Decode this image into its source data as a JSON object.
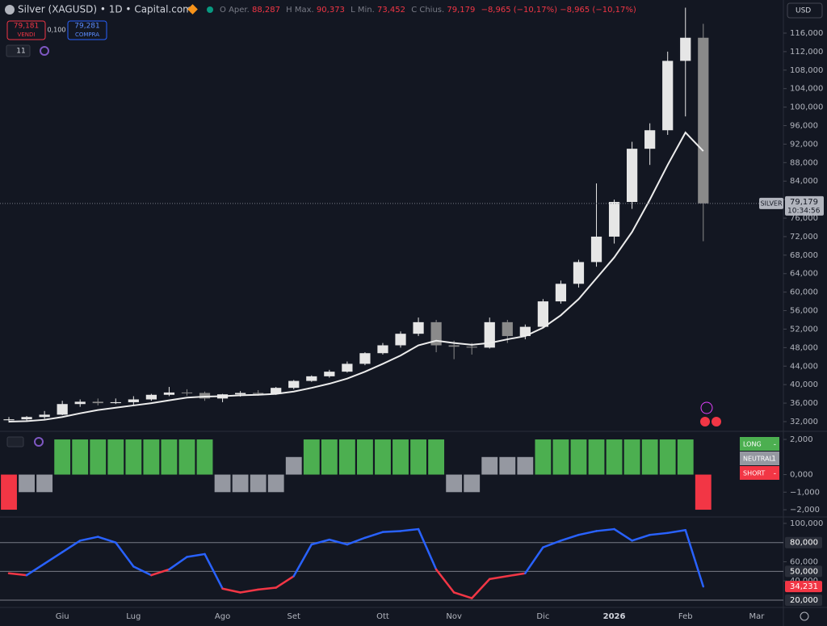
{
  "header": {
    "title": "Silver (XAGUSD) • 1D • Capital.com",
    "ohlc": [
      {
        "key": "O",
        "name": "Aper.",
        "value": "88,287"
      },
      {
        "key": "H",
        "name": "Max.",
        "value": "90,373"
      },
      {
        "key": "L",
        "name": "Min.",
        "value": "73,452"
      },
      {
        "key": "C",
        "name": "Chius.",
        "value": "79,179"
      }
    ],
    "change": "−8,965 (−10,17%)",
    "sell": {
      "price": "79,181",
      "label": "VENDI"
    },
    "spread": "0,100",
    "buy": {
      "price": "79,281",
      "label": "COMPRA"
    },
    "indicators": "11",
    "currency": "USD"
  },
  "chart_data": [
    {
      "type": "candlestick",
      "symbol_tag": "SILVER",
      "last_price_label": "79,179",
      "countdown": "10:34:56",
      "categories": [
        null,
        null,
        null,
        "Giu",
        null,
        null,
        null,
        "Lug",
        null,
        null,
        null,
        null,
        "Ago",
        null,
        null,
        null,
        "Set",
        null,
        null,
        null,
        null,
        "Ott",
        null,
        null,
        null,
        "Nov",
        null,
        null,
        null,
        null,
        "Dic",
        null,
        null,
        null,
        "2026",
        null,
        null,
        null,
        "Feb",
        null,
        null,
        null,
        "Mar",
        null
      ],
      "open": [
        32.3,
        32.5,
        33.0,
        33.5,
        35.8,
        36.3,
        36.0,
        36.2,
        36.8,
        37.8,
        38.3,
        38.2,
        37.0,
        37.9,
        38.2,
        38.0,
        39.3,
        40.8,
        41.8,
        42.8,
        44.5,
        46.8,
        48.5,
        51.0,
        53.5,
        48.5,
        48.2,
        48.0,
        53.5,
        50.5,
        52.5,
        58.0,
        61.8,
        66.5,
        72.0,
        79.5,
        91.0,
        95.0,
        110.0,
        115.0,
        null,
        null,
        null,
        null
      ],
      "high": [
        33.0,
        33.2,
        34.3,
        36.5,
        36.8,
        37.0,
        37.0,
        37.5,
        38.0,
        39.5,
        39.0,
        38.5,
        38.0,
        38.6,
        38.8,
        39.5,
        41.0,
        42.0,
        43.2,
        45.0,
        47.0,
        49.0,
        51.5,
        54.5,
        54.0,
        49.5,
        49.0,
        54.5,
        54.0,
        53.0,
        58.5,
        62.5,
        67.0,
        83.5,
        80.0,
        92.5,
        96.5,
        112.0,
        121.5,
        118.0,
        null,
        null,
        null,
        null
      ],
      "low": [
        31.8,
        32.0,
        32.6,
        33.4,
        35.2,
        35.5,
        35.8,
        35.5,
        36.5,
        37.5,
        37.6,
        36.5,
        36.2,
        37.4,
        37.6,
        37.8,
        39.0,
        40.6,
        41.5,
        42.6,
        44.2,
        46.5,
        48.0,
        50.5,
        47.0,
        45.5,
        46.5,
        47.8,
        49.0,
        49.8,
        52.3,
        57.5,
        61.0,
        65.5,
        70.5,
        78.0,
        87.5,
        94.0,
        98.0,
        71.0,
        null,
        null,
        null,
        null
      ],
      "close": [
        32.5,
        33.0,
        33.5,
        35.8,
        36.3,
        36.0,
        36.2,
        36.8,
        37.8,
        38.3,
        38.2,
        37.0,
        37.9,
        38.2,
        38.0,
        39.3,
        40.8,
        41.8,
        42.8,
        44.5,
        46.8,
        48.5,
        51.0,
        53.5,
        48.5,
        48.2,
        48.0,
        53.5,
        50.5,
        52.5,
        58.0,
        61.8,
        66.5,
        72.0,
        79.5,
        91.0,
        95.0,
        110.0,
        115.0,
        79.179,
        null,
        null,
        null,
        null
      ],
      "up_color": "#e6e6e6",
      "down_color": "#8a8a8a",
      "ma": {
        "color": "#ececec",
        "values": [
          32.0,
          32.1,
          32.4,
          33.0,
          33.8,
          34.5,
          35.0,
          35.5,
          36.0,
          36.6,
          37.2,
          37.4,
          37.5,
          37.7,
          37.8,
          38.0,
          38.5,
          39.3,
          40.2,
          41.3,
          42.8,
          44.5,
          46.3,
          48.5,
          49.5,
          49.0,
          48.6,
          49.0,
          49.8,
          50.5,
          52.3,
          55.0,
          58.5,
          63.0,
          67.5,
          73.0,
          80.0,
          87.5,
          94.5,
          90.5,
          null,
          null,
          null,
          null
        ]
      },
      "ylim": [
        30.25,
        123.16
      ],
      "yticks": [
        {
          "value": 32,
          "label": "32,000"
        },
        {
          "value": 36,
          "label": "36,000"
        },
        {
          "value": 40,
          "label": "40,000"
        },
        {
          "value": 44,
          "label": "44,000"
        },
        {
          "value": 48,
          "label": "48,000"
        },
        {
          "value": 52,
          "label": "52,000"
        },
        {
          "value": 56,
          "label": "56,000"
        },
        {
          "value": 60,
          "label": "60,000"
        },
        {
          "value": 64,
          "label": "64,000"
        },
        {
          "value": 68,
          "label": "68,000"
        },
        {
          "value": 72,
          "label": "72,000"
        },
        {
          "value": 76,
          "label": "76,000"
        },
        {
          "value": 80,
          "label": "80,000"
        },
        {
          "value": 84,
          "label": "84,000"
        },
        {
          "value": 88,
          "label": "88,000"
        },
        {
          "value": 92,
          "label": "92,000"
        },
        {
          "value": 96,
          "label": "96,000"
        },
        {
          "value": 100,
          "label": "100,000"
        },
        {
          "value": 104,
          "label": "104,000"
        },
        {
          "value": 108,
          "label": "108,000"
        },
        {
          "value": 112,
          "label": "112,000"
        },
        {
          "value": 116,
          "label": "116,000"
        }
      ],
      "grid": false
    },
    {
      "type": "signal-bar",
      "values": [
        -2,
        -1,
        -1,
        2,
        2,
        2,
        2,
        2,
        2,
        2,
        2,
        2,
        -1,
        -1,
        -1,
        -1,
        1,
        2,
        2,
        2,
        2,
        2,
        2,
        2,
        2,
        -1,
        -1,
        1,
        1,
        1,
        2,
        2,
        2,
        2,
        2,
        2,
        2,
        2,
        2,
        -2,
        null,
        null,
        null,
        null
      ],
      "colors": {
        "long": "#4caf50",
        "neutral": "#9598a1",
        "short": "#f23645"
      },
      "legend": [
        {
          "name": "LONG",
          "value": "-"
        },
        {
          "name": "NEUTRAL",
          "value": "1"
        },
        {
          "name": "SHORT",
          "value": "-"
        }
      ],
      "ylim": [
        -2.32,
        2.37
      ],
      "yticks": [
        {
          "value": 2,
          "label": "2,000"
        },
        {
          "value": 0,
          "label": "0,000"
        },
        {
          "value": -1,
          "label": "−1,000"
        },
        {
          "value": -2,
          "label": "−2,000"
        }
      ]
    },
    {
      "type": "oscillator",
      "values": [
        48,
        46,
        58,
        70,
        82,
        86,
        80,
        55,
        46,
        52,
        65,
        68,
        32,
        28,
        31,
        33,
        45,
        78,
        83,
        78,
        85,
        91,
        92,
        94,
        52,
        28,
        22,
        42,
        45,
        48,
        75,
        82,
        88,
        92,
        94,
        82,
        88,
        90,
        93,
        34.231,
        null,
        null,
        null,
        null
      ],
      "last_value_label": "34,231",
      "color_above": "#2962ff",
      "color_below": "#f23645",
      "split": 50,
      "levels": [
        {
          "value": 80,
          "label": "80,000"
        },
        {
          "value": 50,
          "label": "50,000"
        },
        {
          "value": 20,
          "label": "20,000"
        }
      ],
      "ylim": [
        12.4,
        105
      ],
      "yticks": [
        {
          "value": 100,
          "label": "100,000"
        },
        {
          "value": 60,
          "label": "60,000"
        },
        {
          "value": 40,
          "label": "40,000"
        }
      ]
    }
  ]
}
